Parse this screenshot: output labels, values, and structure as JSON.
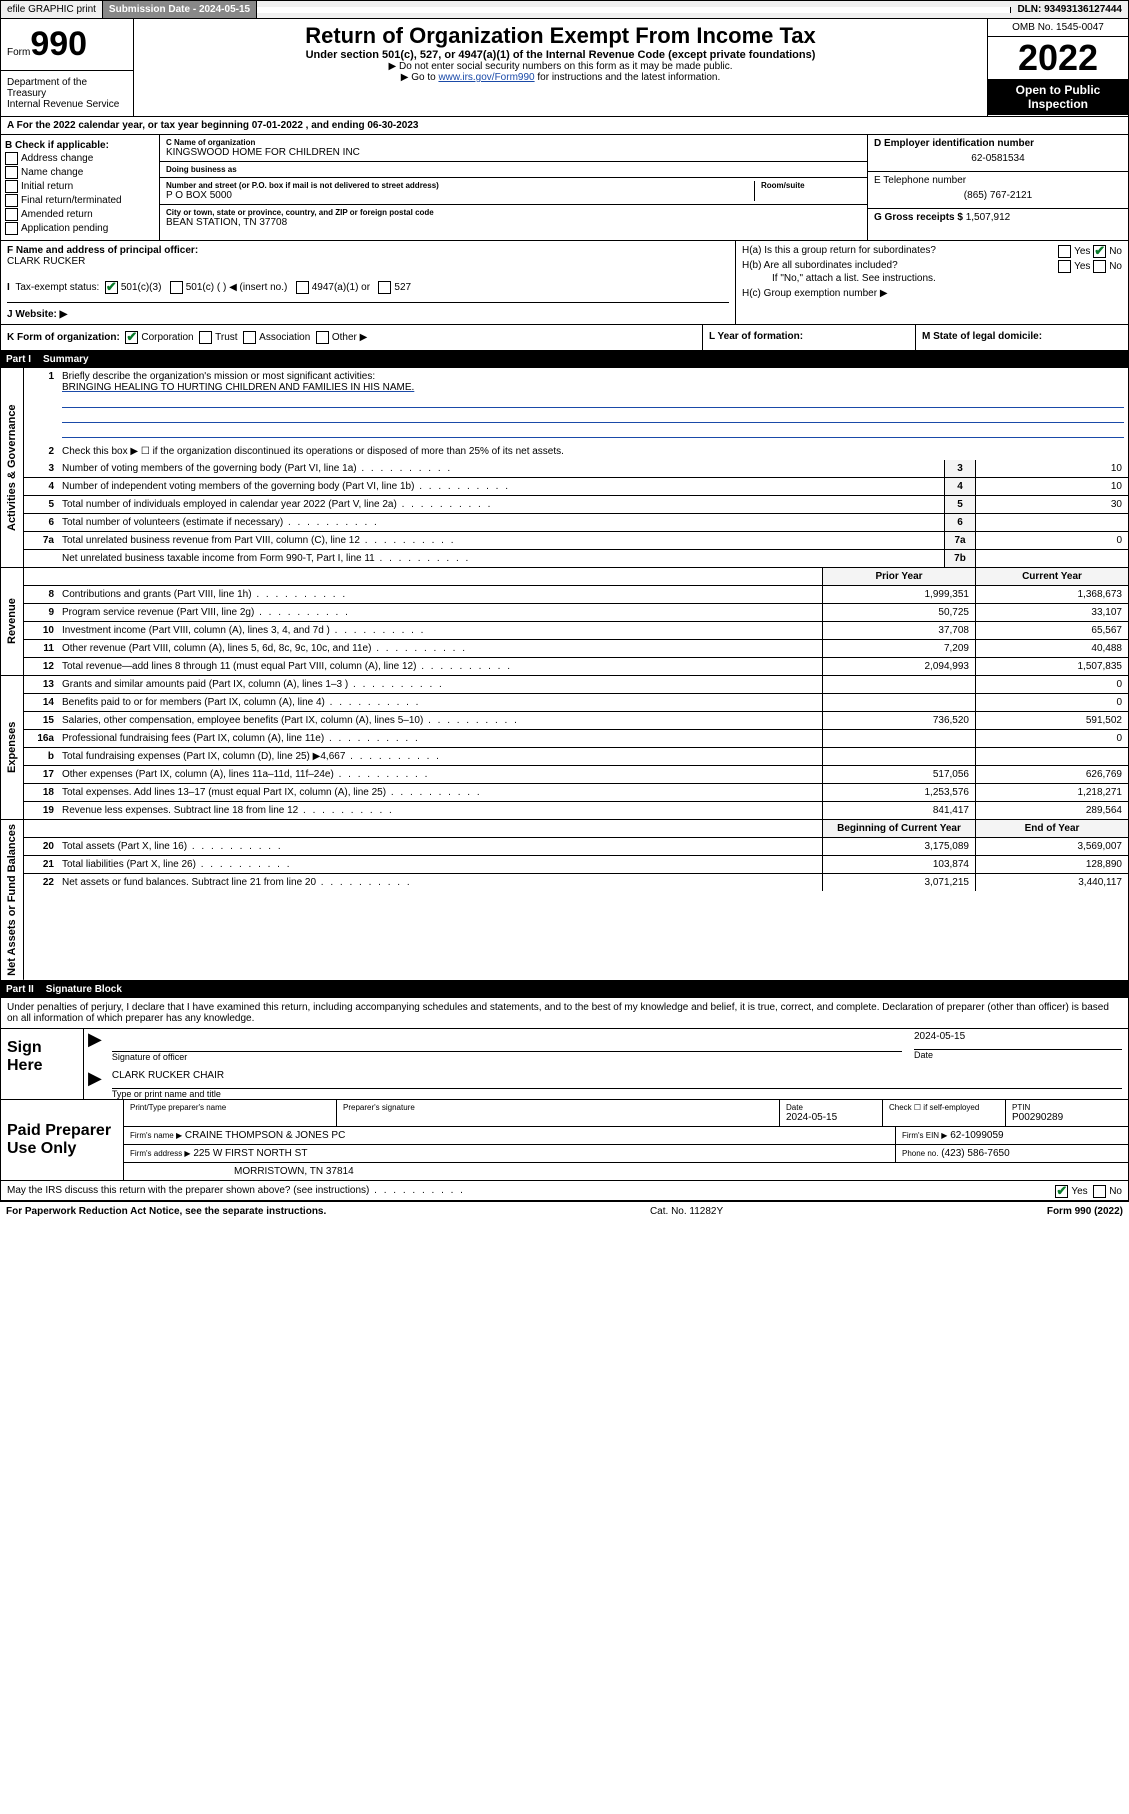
{
  "topbar": {
    "efile": "efile GRAPHIC print",
    "submission_label": "Submission Date - ",
    "submission_date": "2024-05-15",
    "dln_label": "DLN: ",
    "dln": "93493136127444"
  },
  "header": {
    "form_word": "Form",
    "form_num": "990",
    "dept": "Department of the Treasury\nInternal Revenue Service",
    "title": "Return of Organization Exempt From Income Tax",
    "sub": "Under section 501(c), 527, or 4947(a)(1) of the Internal Revenue Code (except private foundations)",
    "note1": "▶ Do not enter social security numbers on this form as it may be made public.",
    "note2_pre": "▶ Go to ",
    "note2_link": "www.irs.gov/Form990",
    "note2_post": " for instructions and the latest information.",
    "omb": "OMB No. 1545-0047",
    "year": "2022",
    "inspect": "Open to Public Inspection"
  },
  "secA": {
    "text_pre": "A For the 2022 calendar year, or tax year beginning ",
    "begin": "07-01-2022",
    "mid": " , and ending ",
    "end": "06-30-2023"
  },
  "colB": {
    "title": "B Check if applicable:",
    "items": [
      "Address change",
      "Name change",
      "Initial return",
      "Final return/terminated",
      "Amended return",
      "Application pending"
    ]
  },
  "colC": {
    "name_label": "C Name of organization",
    "name": "KINGSWOOD HOME FOR CHILDREN INC",
    "dba_label": "Doing business as",
    "dba": "",
    "addr_label": "Number and street (or P.O. box if mail is not delivered to street address)",
    "room_label": "Room/suite",
    "addr": "P O BOX 5000",
    "city_label": "City or town, state or province, country, and ZIP or foreign postal code",
    "city": "BEAN STATION, TN  37708"
  },
  "colDE": {
    "d_label": "D Employer identification number",
    "d_val": "62-0581534",
    "e_label": "E Telephone number",
    "e_val": "(865) 767-2121",
    "g_label": "G Gross receipts $ ",
    "g_val": "1,507,912"
  },
  "rowF": {
    "f_label": "F Name and address of principal officer:",
    "f_val": "CLARK RUCKER",
    "i_label": "Tax-exempt status:",
    "i_opts": [
      "501(c)(3)",
      "501(c) (  ) ◀ (insert no.)",
      "4947(a)(1) or",
      "527"
    ],
    "j_label": "J   Website: ▶",
    "j_val": ""
  },
  "rowH": {
    "ha": "H(a)  Is this a group return for subordinates?",
    "hb": "H(b)  Are all subordinates included?",
    "hb_note": "If \"No,\" attach a list. See instructions.",
    "hc": "H(c)  Group exemption number ▶",
    "yes": "Yes",
    "no": "No"
  },
  "rowK": {
    "k": "K Form of organization:",
    "k_opts": [
      "Corporation",
      "Trust",
      "Association",
      "Other ▶"
    ],
    "l": "L Year of formation:",
    "m": "M State of legal domicile:"
  },
  "part1": {
    "hdr_num": "Part I",
    "hdr_title": "Summary",
    "tabs": {
      "gov": "Activities & Governance",
      "rev": "Revenue",
      "exp": "Expenses",
      "net": "Net Assets or Fund Balances"
    },
    "q1": "Briefly describe the organization's mission or most significant activities:",
    "q1_ans": "BRINGING HEALING TO HURTING CHILDREN AND FAMILIES IN HIS NAME.",
    "q2": "Check this box ▶ ☐  if the organization discontinued its operations or disposed of more than 25% of its net assets.",
    "rows_gov": [
      {
        "n": "3",
        "t": "Number of voting members of the governing body (Part VI, line 1a)",
        "b": "3",
        "v": "10"
      },
      {
        "n": "4",
        "t": "Number of independent voting members of the governing body (Part VI, line 1b)",
        "b": "4",
        "v": "10"
      },
      {
        "n": "5",
        "t": "Total number of individuals employed in calendar year 2022 (Part V, line 2a)",
        "b": "5",
        "v": "30"
      },
      {
        "n": "6",
        "t": "Total number of volunteers (estimate if necessary)",
        "b": "6",
        "v": ""
      },
      {
        "n": "7a",
        "t": "Total unrelated business revenue from Part VIII, column (C), line 12",
        "b": "7a",
        "v": "0"
      },
      {
        "n": "",
        "t": "Net unrelated business taxable income from Form 990-T, Part I, line 11",
        "b": "7b",
        "v": ""
      }
    ],
    "year_hdr": {
      "prior": "Prior Year",
      "current": "Current Year"
    },
    "rows_rev": [
      {
        "n": "8",
        "t": "Contributions and grants (Part VIII, line 1h)",
        "p": "1,999,351",
        "c": "1,368,673"
      },
      {
        "n": "9",
        "t": "Program service revenue (Part VIII, line 2g)",
        "p": "50,725",
        "c": "33,107"
      },
      {
        "n": "10",
        "t": "Investment income (Part VIII, column (A), lines 3, 4, and 7d )",
        "p": "37,708",
        "c": "65,567"
      },
      {
        "n": "11",
        "t": "Other revenue (Part VIII, column (A), lines 5, 6d, 8c, 9c, 10c, and 11e)",
        "p": "7,209",
        "c": "40,488"
      },
      {
        "n": "12",
        "t": "Total revenue—add lines 8 through 11 (must equal Part VIII, column (A), line 12)",
        "p": "2,094,993",
        "c": "1,507,835"
      }
    ],
    "rows_exp": [
      {
        "n": "13",
        "t": "Grants and similar amounts paid (Part IX, column (A), lines 1–3 )",
        "p": "",
        "c": "0"
      },
      {
        "n": "14",
        "t": "Benefits paid to or for members (Part IX, column (A), line 4)",
        "p": "",
        "c": "0"
      },
      {
        "n": "15",
        "t": "Salaries, other compensation, employee benefits (Part IX, column (A), lines 5–10)",
        "p": "736,520",
        "c": "591,502"
      },
      {
        "n": "16a",
        "t": "Professional fundraising fees (Part IX, column (A), line 11e)",
        "p": "",
        "c": "0"
      },
      {
        "n": "b",
        "t": "Total fundraising expenses (Part IX, column (D), line 25) ▶4,667",
        "p": "",
        "c": ""
      },
      {
        "n": "17",
        "t": "Other expenses (Part IX, column (A), lines 11a–11d, 11f–24e)",
        "p": "517,056",
        "c": "626,769"
      },
      {
        "n": "18",
        "t": "Total expenses. Add lines 13–17 (must equal Part IX, column (A), line 25)",
        "p": "1,253,576",
        "c": "1,218,271"
      },
      {
        "n": "19",
        "t": "Revenue less expenses. Subtract line 18 from line 12",
        "p": "841,417",
        "c": "289,564"
      }
    ],
    "net_hdr": {
      "begin": "Beginning of Current Year",
      "end": "End of Year"
    },
    "rows_net": [
      {
        "n": "20",
        "t": "Total assets (Part X, line 16)",
        "p": "3,175,089",
        "c": "3,569,007"
      },
      {
        "n": "21",
        "t": "Total liabilities (Part X, line 26)",
        "p": "103,874",
        "c": "128,890"
      },
      {
        "n": "22",
        "t": "Net assets or fund balances. Subtract line 21 from line 20",
        "p": "3,071,215",
        "c": "3,440,117"
      }
    ]
  },
  "part2": {
    "hdr_num": "Part II",
    "hdr_title": "Signature Block",
    "decl": "Under penalties of perjury, I declare that I have examined this return, including accompanying schedules and statements, and to the best of my knowledge and belief, it is true, correct, and complete. Declaration of preparer (other than officer) is based on all information of which preparer has any knowledge.",
    "sign_here": "Sign Here",
    "sig_officer": "Signature of officer",
    "sig_date": "Date",
    "sig_date_val": "2024-05-15",
    "sig_name_label": "Type or print name and title",
    "sig_name": "CLARK RUCKER  CHAIR",
    "paid": "Paid Preparer Use Only",
    "pp_name_label": "Print/Type preparer's name",
    "pp_sig_label": "Preparer's signature",
    "pp_date_label": "Date",
    "pp_date": "2024-05-15",
    "pp_check": "Check ☐ if self-employed",
    "pp_ptin_label": "PTIN",
    "pp_ptin": "P00290289",
    "firm_name_label": "Firm's name    ▶",
    "firm_name": "CRAINE THOMPSON & JONES PC",
    "firm_ein_label": "Firm's EIN ▶",
    "firm_ein": "62-1099059",
    "firm_addr_label": "Firm's address ▶",
    "firm_addr1": "225 W FIRST NORTH ST",
    "firm_addr2": "MORRISTOWN, TN  37814",
    "firm_phone_label": "Phone no.",
    "firm_phone": "(423) 586-7650",
    "discuss": "May the IRS discuss this return with the preparer shown above? (see instructions)",
    "yes": "Yes",
    "no": "No"
  },
  "footer": {
    "left": "For Paperwork Reduction Act Notice, see the separate instructions.",
    "mid": "Cat. No. 11282Y",
    "right": "Form 990 (2022)"
  }
}
